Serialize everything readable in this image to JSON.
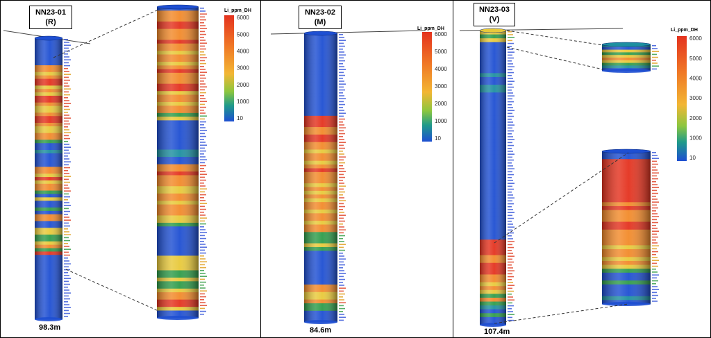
{
  "legend": {
    "title": "Li_ppm_DH",
    "ticks_a": [
      "6000",
      "5000",
      "4000",
      "3000",
      "2000",
      "1000",
      "10"
    ],
    "ticks_b": [
      "6000",
      "5000",
      "4000",
      "3000",
      "2000",
      "1000",
      "10"
    ]
  },
  "panels": [
    {
      "hole_id": "NN23-01",
      "method": "(R)",
      "depth": "98.3m"
    },
    {
      "hole_id": "NN23-02",
      "method": "(M)",
      "depth": "84.6m"
    },
    {
      "hole_id": "NN23-03",
      "method": "(V)",
      "depth": "107.4m"
    }
  ],
  "colors": {
    "low": "#1e4fd2",
    "mid_low": "#2f9c4a",
    "mid": "#e8c93a",
    "high": "#f28a2a",
    "very_high": "#e4321e",
    "label_low": "#3b5bdb",
    "label_high": "#e0452a"
  }
}
